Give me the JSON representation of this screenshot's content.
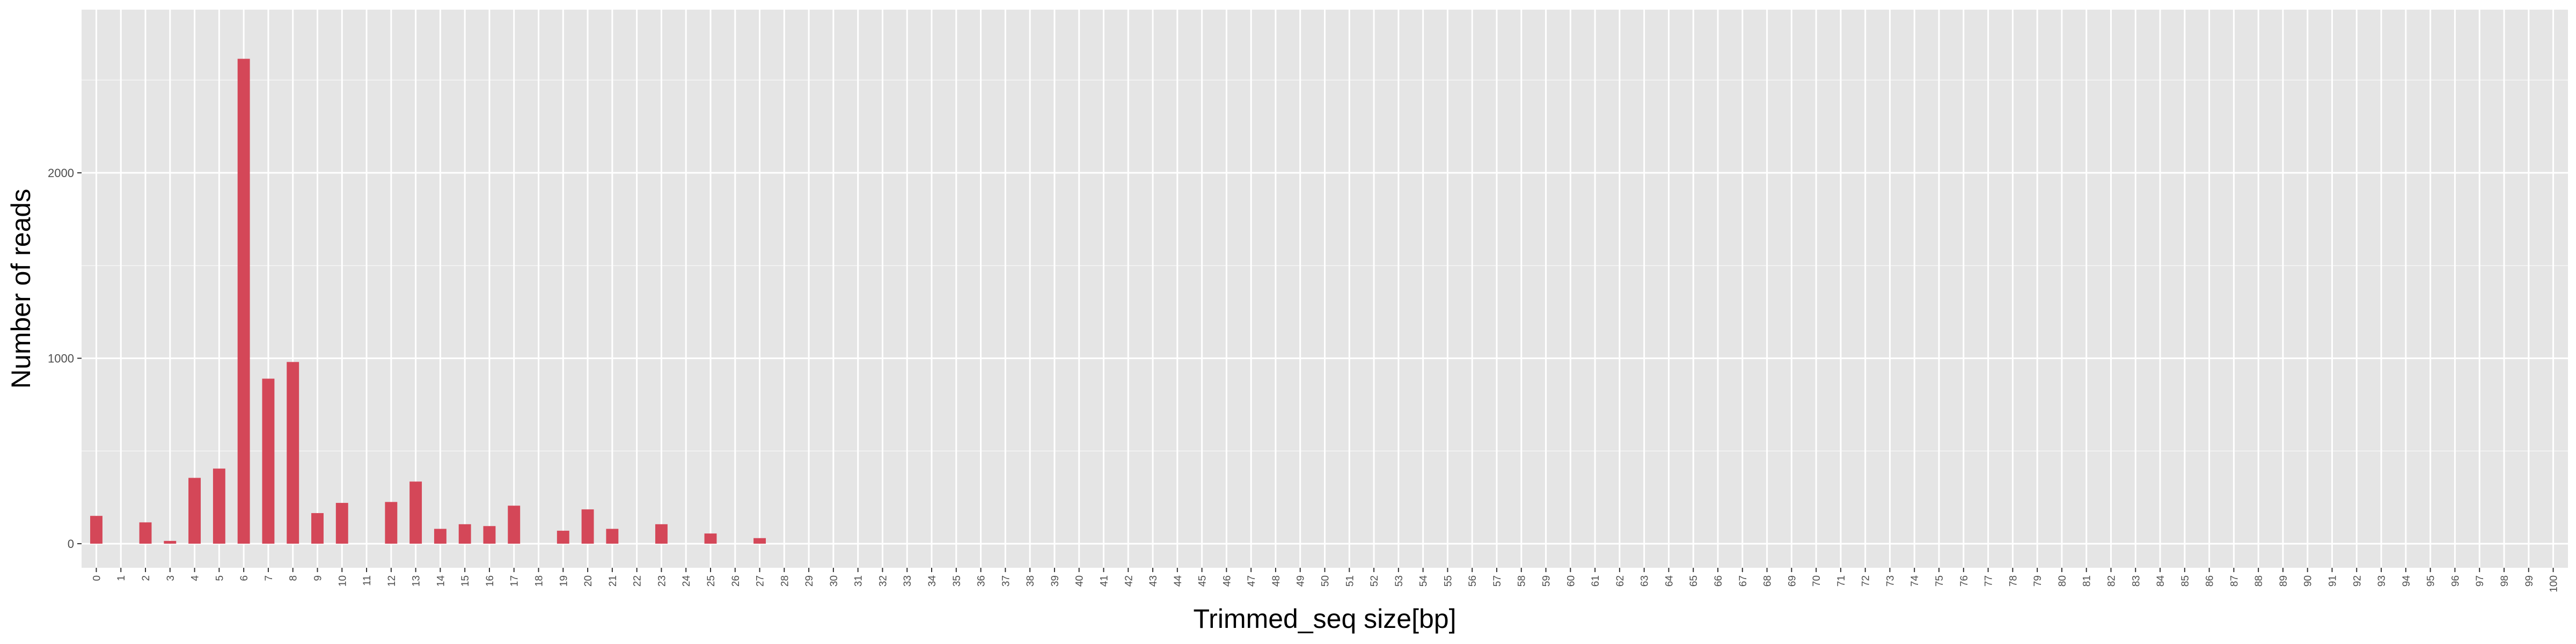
{
  "chart_data": {
    "type": "bar",
    "xlabel": "Trimmed_seq size[bp]",
    "ylabel": "Number of reads",
    "x_min": 0,
    "x_max": 100,
    "x_step": 1,
    "ylim": [
      -130,
      2880
    ],
    "y_ticks": [
      0,
      1000,
      2000
    ],
    "grid": true,
    "legend": "none",
    "bar_color": "#d44758",
    "panel_color": "#e5e5e5",
    "grid_color": "#ffffff",
    "points": [
      {
        "x": 0,
        "y": 150
      },
      {
        "x": 2,
        "y": 115
      },
      {
        "x": 3,
        "y": 15
      },
      {
        "x": 4,
        "y": 355
      },
      {
        "x": 5,
        "y": 405
      },
      {
        "x": 6,
        "y": 2615
      },
      {
        "x": 7,
        "y": 890
      },
      {
        "x": 8,
        "y": 980
      },
      {
        "x": 9,
        "y": 165
      },
      {
        "x": 10,
        "y": 220
      },
      {
        "x": 12,
        "y": 225
      },
      {
        "x": 13,
        "y": 335
      },
      {
        "x": 14,
        "y": 80
      },
      {
        "x": 15,
        "y": 105
      },
      {
        "x": 16,
        "y": 95
      },
      {
        "x": 17,
        "y": 205
      },
      {
        "x": 19,
        "y": 70
      },
      {
        "x": 20,
        "y": 185
      },
      {
        "x": 21,
        "y": 80
      },
      {
        "x": 23,
        "y": 105
      },
      {
        "x": 25,
        "y": 55
      },
      {
        "x": 27,
        "y": 30
      }
    ]
  }
}
